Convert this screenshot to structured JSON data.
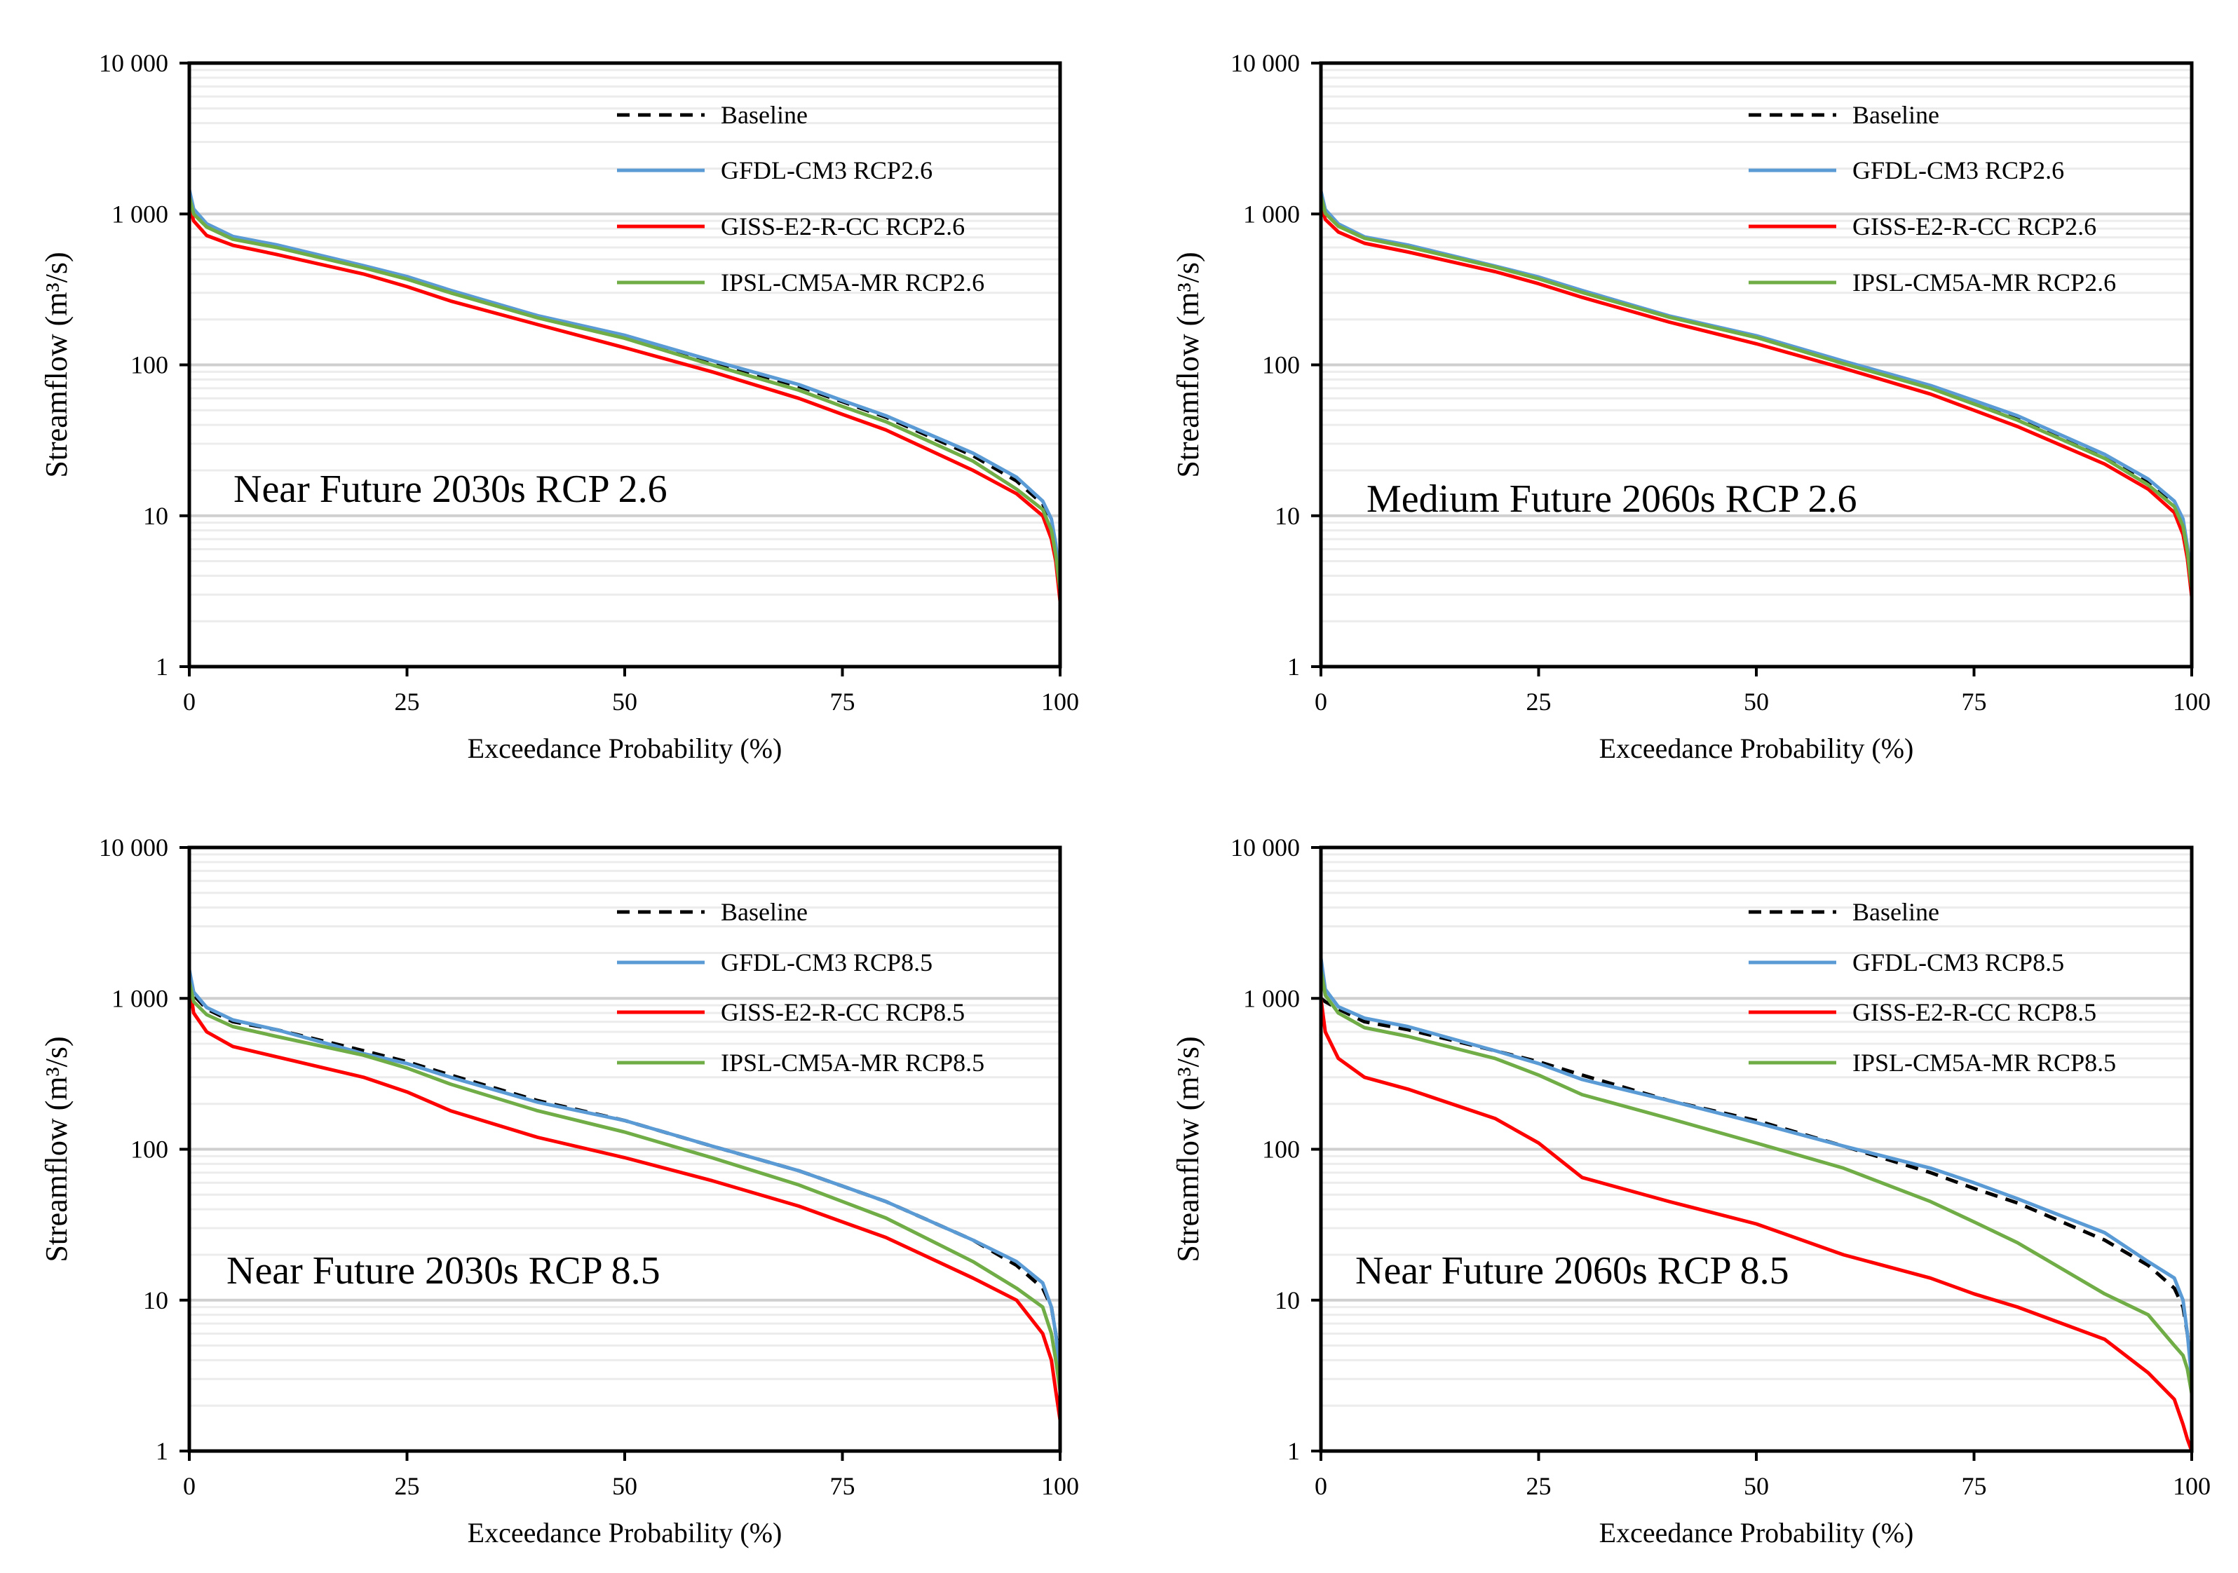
{
  "chart_data": [
    {
      "type": "line",
      "annotation": "Near Future 2030s RCP 2.6",
      "xlabel": "Exceedance Probability (%)",
      "ylabel": "Streamflow (m³/s)",
      "yscale": "log",
      "ylim": [
        1,
        10000
      ],
      "xlim": [
        0,
        100
      ],
      "xticks": [
        "0",
        "25",
        "50",
        "75",
        "100"
      ],
      "yticks": [
        "1",
        "10",
        "100",
        "1 000",
        "10 000"
      ],
      "grid": true,
      "legend": "top-right",
      "x": [
        0,
        0.5,
        2,
        5,
        10,
        20,
        25,
        30,
        40,
        50,
        60,
        70,
        75,
        80,
        90,
        95,
        98,
        99,
        99.5,
        100
      ],
      "series": [
        {
          "name": "Baseline",
          "color": "#000000",
          "dash": true,
          "values": [
            1400,
            1050,
            850,
            700,
            620,
            450,
            380,
            310,
            210,
            155,
            105,
            72,
            57,
            45,
            25,
            17,
            12,
            9,
            6,
            3.5
          ]
        },
        {
          "name": "GFDL-CM3 RCP2.6",
          "color": "#5b9bd5",
          "values": [
            1450,
            1080,
            860,
            710,
            625,
            455,
            385,
            312,
            212,
            157,
            107,
            74,
            58,
            46,
            26,
            18,
            12.5,
            9.5,
            6.5,
            3.6
          ]
        },
        {
          "name": "GISS-E2-R-CC RCP2.6",
          "color": "#ff0000",
          "values": [
            1150,
            900,
            720,
            620,
            540,
            400,
            330,
            265,
            185,
            130,
            90,
            60,
            47,
            37,
            20,
            14,
            10,
            7,
            5,
            2.7
          ]
        },
        {
          "name": "IPSL-CM5A-MR RCP2.6",
          "color": "#70ad47",
          "values": [
            1300,
            1000,
            820,
            680,
            600,
            440,
            370,
            300,
            205,
            150,
            100,
            68,
            53,
            42,
            23,
            15,
            11,
            8,
            5.5,
            3.2
          ]
        }
      ]
    },
    {
      "type": "line",
      "annotation": "Medium Future 2060s RCP 2.6",
      "xlabel": "Exceedance Probability (%)",
      "ylabel": "Streamflow (m³/s)",
      "yscale": "log",
      "ylim": [
        1,
        10000
      ],
      "xlim": [
        0,
        100
      ],
      "xticks": [
        "0",
        "25",
        "50",
        "75",
        "100"
      ],
      "yticks": [
        "1",
        "10",
        "100",
        "1 000",
        "10 000"
      ],
      "grid": true,
      "legend": "top-right",
      "x": [
        0,
        0.5,
        2,
        5,
        10,
        20,
        25,
        30,
        40,
        50,
        60,
        70,
        75,
        80,
        90,
        95,
        98,
        99,
        99.5,
        100
      ],
      "series": [
        {
          "name": "Baseline",
          "color": "#000000",
          "dash": true,
          "values": [
            1400,
            1050,
            850,
            700,
            620,
            450,
            380,
            310,
            210,
            155,
            105,
            72,
            57,
            45,
            25,
            17,
            12,
            9,
            6,
            3.5
          ]
        },
        {
          "name": "GFDL-CM3 RCP2.6",
          "color": "#5b9bd5",
          "values": [
            1420,
            1070,
            860,
            705,
            622,
            452,
            382,
            311,
            211,
            156,
            106,
            73,
            58,
            46,
            25.5,
            17.5,
            12.5,
            9.5,
            6.3,
            3.5
          ]
        },
        {
          "name": "GISS-E2-R-CC RCP2.6",
          "color": "#ff0000",
          "values": [
            1200,
            920,
            760,
            640,
            560,
            415,
            345,
            280,
            192,
            138,
            95,
            64,
            50,
            39,
            22,
            15,
            10.5,
            7.5,
            5.2,
            2.9
          ]
        },
        {
          "name": "IPSL-CM5A-MR RCP2.6",
          "color": "#70ad47",
          "values": [
            1320,
            1010,
            830,
            690,
            605,
            445,
            372,
            302,
            207,
            152,
            102,
            70,
            55,
            43,
            24,
            16,
            11.5,
            8.5,
            5.8,
            3.3
          ]
        }
      ]
    },
    {
      "type": "line",
      "annotation": "Near Future 2030s RCP 8.5",
      "xlabel": "Exceedance Probability (%)",
      "ylabel": "Streamflow (m³/s)",
      "yscale": "log",
      "ylim": [
        1,
        10000
      ],
      "xlim": [
        0,
        100
      ],
      "xticks": [
        "0",
        "25",
        "50",
        "75",
        "100"
      ],
      "yticks": [
        "1",
        "10",
        "100",
        "1 000",
        "10 000"
      ],
      "grid": true,
      "legend": "top-right",
      "x": [
        0,
        0.5,
        2,
        5,
        10,
        20,
        25,
        30,
        40,
        50,
        60,
        70,
        75,
        80,
        90,
        95,
        98,
        99,
        99.5,
        100
      ],
      "series": [
        {
          "name": "Baseline",
          "color": "#000000",
          "dash": true,
          "values": [
            1400,
            1050,
            850,
            700,
            620,
            450,
            380,
            310,
            210,
            155,
            105,
            72,
            57,
            45,
            25,
            17,
            12,
            9,
            6,
            3.5
          ]
        },
        {
          "name": "GFDL-CM3 RCP8.5",
          "color": "#5b9bd5",
          "values": [
            1550,
            1100,
            870,
            720,
            620,
            430,
            370,
            300,
            205,
            155,
            105,
            72,
            57,
            45,
            25,
            18,
            13,
            9,
            6,
            3
          ]
        },
        {
          "name": "GISS-E2-R-CC RCP8.5",
          "color": "#ff0000",
          "values": [
            1250,
            800,
            600,
            480,
            410,
            300,
            240,
            180,
            120,
            88,
            62,
            42,
            33,
            26,
            14,
            10,
            6,
            4,
            2.5,
            1.6
          ]
        },
        {
          "name": "IPSL-CM5A-MR RCP8.5",
          "color": "#70ad47",
          "values": [
            1300,
            950,
            780,
            650,
            560,
            420,
            345,
            270,
            180,
            130,
            88,
            58,
            45,
            35,
            18,
            12,
            9,
            6,
            4,
            2.5
          ]
        }
      ]
    },
    {
      "type": "line",
      "annotation": "Near Future 2060s RCP 8.5",
      "xlabel": "Exceedance Probability (%)",
      "ylabel": "Streamflow (m³/s)",
      "yscale": "log",
      "ylim": [
        1,
        10000
      ],
      "xlim": [
        0,
        100
      ],
      "xticks": [
        "0",
        "25",
        "50",
        "75",
        "100"
      ],
      "yticks": [
        "1",
        "10",
        "100",
        "1 000",
        "10 000"
      ],
      "grid": true,
      "legend": "top-right",
      "x": [
        0,
        0.5,
        2,
        5,
        10,
        20,
        25,
        30,
        40,
        50,
        60,
        70,
        75,
        80,
        90,
        95,
        98,
        99,
        99.5,
        100
      ],
      "series": [
        {
          "name": "Baseline",
          "color": "#000000",
          "dash": true,
          "values": [
            1000,
            950,
            850,
            700,
            620,
            450,
            380,
            310,
            210,
            155,
            105,
            70,
            55,
            44,
            25,
            17,
            12,
            9,
            6,
            3.5
          ]
        },
        {
          "name": "GFDL-CM3 RCP8.5",
          "color": "#5b9bd5",
          "values": [
            1850,
            1150,
            880,
            740,
            650,
            450,
            370,
            290,
            210,
            150,
            105,
            75,
            60,
            47,
            28,
            18,
            14,
            10,
            6,
            3
          ]
        },
        {
          "name": "GISS-E2-R-CC RCP8.5",
          "color": "#ff0000",
          "values": [
            1000,
            600,
            400,
            300,
            250,
            160,
            110,
            65,
            45,
            32,
            20,
            14,
            11,
            9,
            5.5,
            3.3,
            2.2,
            1.5,
            1.2,
            1
          ]
        },
        {
          "name": "IPSL-CM5A-MR RCP8.5",
          "color": "#70ad47",
          "values": [
            1550,
            1050,
            800,
            640,
            560,
            400,
            310,
            230,
            160,
            110,
            75,
            45,
            33,
            24,
            11,
            8,
            5,
            4.3,
            3.5,
            2.4
          ]
        }
      ]
    }
  ]
}
